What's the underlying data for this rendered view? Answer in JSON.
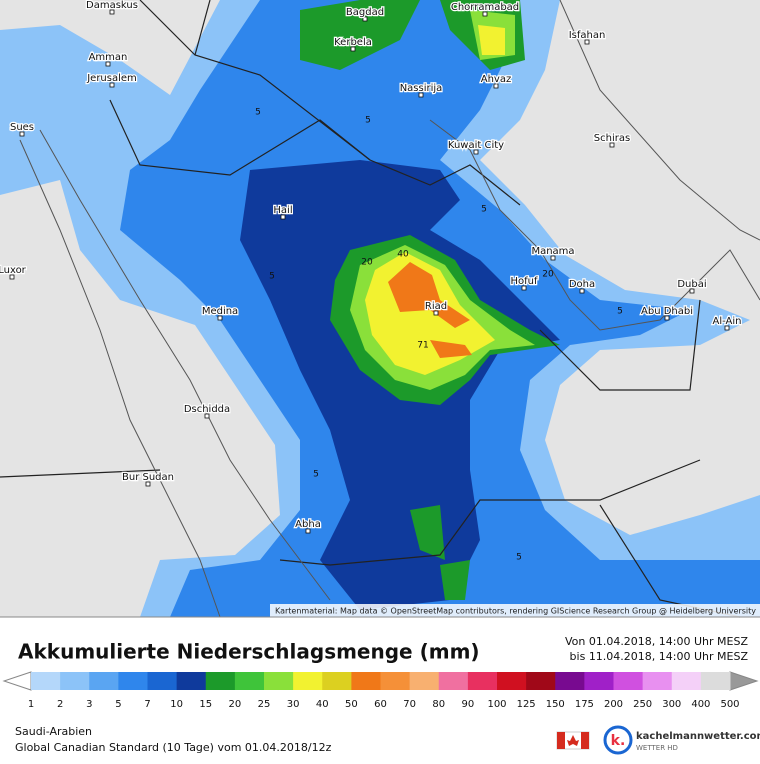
{
  "map": {
    "cities": [
      "Damaskus",
      "Bagdad",
      "Chorramabad",
      "Isfahan",
      "Kerbela",
      "Amman",
      "Jerusalem",
      "Ahvaz",
      "Nassirija",
      "Sues",
      "Schiras",
      "Kuwait City",
      "Hail",
      "Manama",
      "Luxor",
      "Hofuf",
      "Doha",
      "Dubai",
      "Riad",
      "Medina",
      "Abu Dhabi",
      "Al-Ain",
      "Dschidda",
      "Bur Sudan",
      "Abha"
    ],
    "contour_labels": [
      "5",
      "5",
      "5",
      "5",
      "20",
      "40",
      "71",
      "20",
      "5",
      "5",
      "5"
    ],
    "attribution": "Kartenmaterial: Map data © OpenStreetMap contributors, rendering GIScience Research Group @ Heidelberg University"
  },
  "header": {
    "title": "Akkumulierte Niederschlagsmenge (mm)",
    "from": "Von 01.04.2018, 14:00 Uhr MESZ",
    "to": "bis 11.04.2018, 14:00 Uhr MESZ"
  },
  "legend": {
    "labels": [
      "1",
      "2",
      "3",
      "5",
      "7",
      "10",
      "15",
      "20",
      "25",
      "30",
      "40",
      "50",
      "60",
      "70",
      "80",
      "90",
      "100",
      "125",
      "150",
      "175",
      "200",
      "250",
      "300",
      "400",
      "500"
    ],
    "colors": [
      "#b4d7fa",
      "#8cc3f8",
      "#5aa5f2",
      "#2f86ec",
      "#1a66d2",
      "#0f3a9c",
      "#1c9a2a",
      "#3fc43a",
      "#8ae03a",
      "#f2f230",
      "#dcd020",
      "#f07818",
      "#f59038",
      "#f8b070",
      "#f070a0",
      "#e83060",
      "#d01020",
      "#a00818",
      "#780a90",
      "#a020c8",
      "#d050e0",
      "#e890f0",
      "#f4d0f8",
      "#dcdcdc"
    ]
  },
  "footer": {
    "region": "Saudi-Arabien",
    "model": "Global Canadian Standard (10 Tage) vom 01.04.2018/12z",
    "brand": "kachelmannwetter.com",
    "brand_sub": "WETTER HD"
  }
}
